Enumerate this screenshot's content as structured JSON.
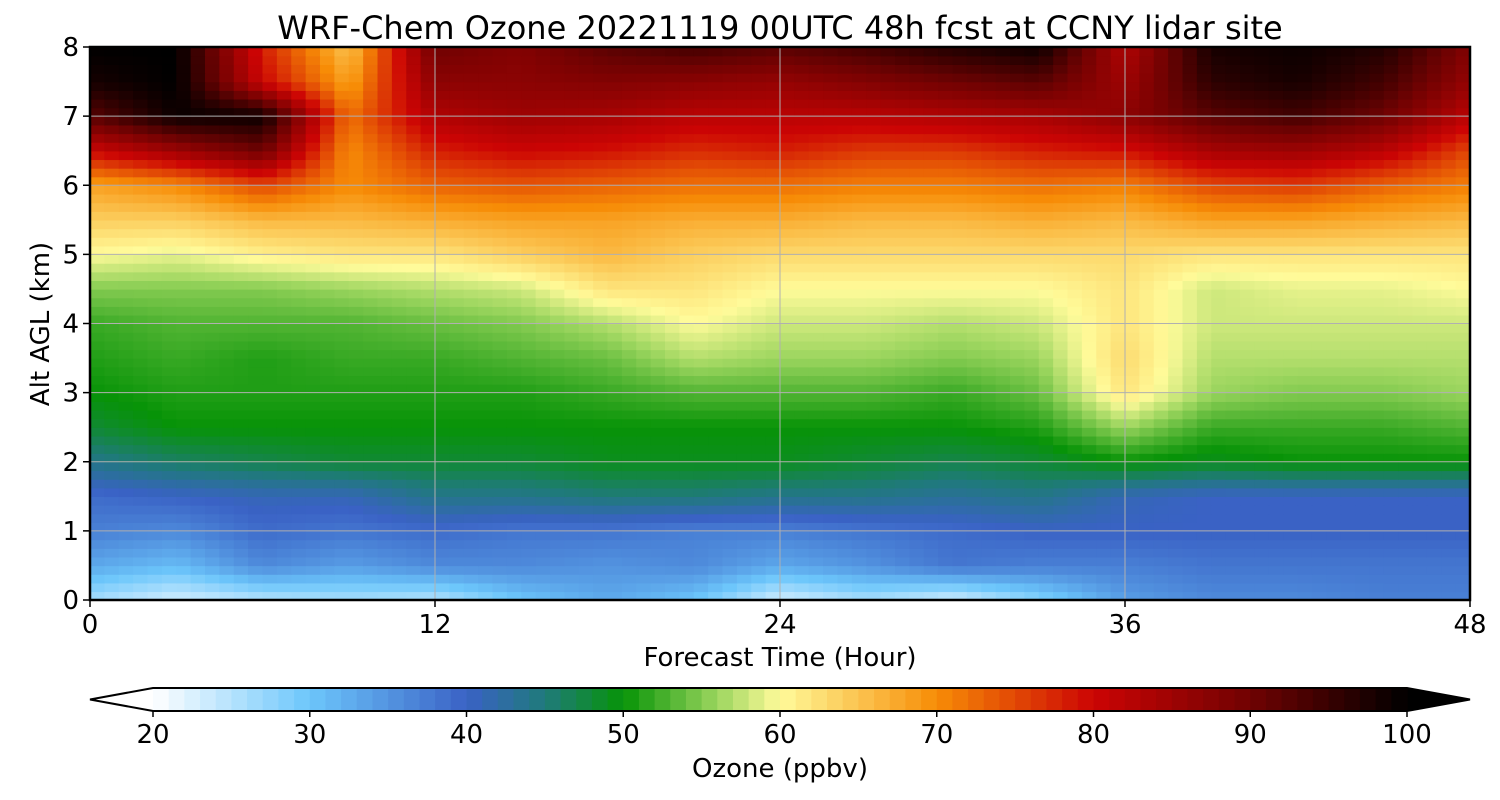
{
  "chart_data": {
    "type": "heatmap",
    "title": "WRF-Chem Ozone  20221119 00UTC 48h fcst at CCNY lidar site",
    "xlabel": "Forecast Time (Hour)",
    "ylabel": "Alt AGL (km)",
    "xlim": [
      0,
      48
    ],
    "ylim": [
      0,
      8
    ],
    "xticks": [
      0,
      12,
      24,
      36,
      48
    ],
    "yticks": [
      0,
      1,
      2,
      3,
      4,
      5,
      6,
      7,
      8
    ],
    "grid": true,
    "x": [
      0,
      3,
      6,
      9,
      12,
      15,
      18,
      21,
      24,
      27,
      30,
      33,
      36,
      39,
      42,
      45,
      48
    ],
    "y": [
      0,
      0.5,
      1,
      1.5,
      2,
      2.5,
      3,
      3.5,
      4,
      4.5,
      5,
      5.5,
      6,
      6.5,
      7,
      7.5,
      8
    ],
    "z_units": "ppbv",
    "z": [
      [
        26,
        23,
        25,
        26,
        25,
        30,
        33,
        30,
        23,
        26,
        23,
        28,
        34,
        36,
        36,
        37,
        37
      ],
      [
        33,
        31,
        36,
        34,
        36,
        36,
        35,
        36,
        33,
        35,
        38,
        37,
        37,
        38,
        38,
        38,
        38
      ],
      [
        37,
        36,
        39,
        38,
        39,
        38,
        38,
        37,
        37,
        38,
        39,
        40,
        40,
        40,
        40,
        40,
        40
      ],
      [
        39,
        40,
        41,
        41,
        44,
        44,
        45,
        45,
        44,
        44,
        43,
        44,
        41,
        40,
        40,
        40,
        40
      ],
      [
        44,
        46,
        47,
        48,
        48,
        48,
        49,
        49,
        49,
        48,
        47,
        48,
        50,
        49,
        50,
        50,
        50
      ],
      [
        48,
        50,
        50,
        50,
        50,
        50,
        50,
        50,
        50,
        50,
        50,
        51,
        56,
        52,
        52,
        52,
        53
      ],
      [
        50,
        51,
        51,
        51,
        51,
        51,
        52,
        53,
        53,
        53,
        52,
        54,
        62,
        56,
        55,
        55,
        56
      ],
      [
        51,
        52,
        51,
        52,
        52,
        53,
        54,
        57,
        56,
        56,
        55,
        56,
        63,
        57,
        57,
        57,
        57
      ],
      [
        52,
        53,
        53,
        53,
        54,
        55,
        57,
        60,
        58,
        58,
        57,
        58,
        62,
        58,
        58,
        58,
        58
      ],
      [
        55,
        55,
        55,
        56,
        57,
        58,
        62,
        62,
        60,
        60,
        60,
        60,
        62,
        58,
        59,
        59,
        60
      ],
      [
        60,
        59,
        61,
        62,
        62,
        64,
        66,
        64,
        63,
        63,
        63,
        63,
        63,
        62,
        62,
        62,
        62
      ],
      [
        64,
        64,
        66,
        66,
        67,
        68,
        68,
        67,
        67,
        66,
        66,
        67,
        66,
        68,
        68,
        67,
        66
      ],
      [
        68,
        70,
        75,
        70,
        73,
        74,
        73,
        72,
        72,
        71,
        71,
        72,
        71,
        75,
        76,
        73,
        71
      ],
      [
        80,
        85,
        90,
        70,
        78,
        80,
        79,
        77,
        78,
        76,
        76,
        78,
        79,
        84,
        85,
        82,
        75
      ],
      [
        92,
        99,
        99,
        72,
        83,
        85,
        84,
        82,
        82,
        82,
        83,
        84,
        87,
        92,
        94,
        90,
        82
      ],
      [
        98,
        100,
        80,
        68,
        87,
        87,
        88,
        87,
        86,
        88,
        90,
        92,
        85,
        96,
        98,
        94,
        86
      ],
      [
        100,
        100,
        78,
        65,
        90,
        88,
        92,
        94,
        92,
        94,
        97,
        99,
        83,
        98,
        99,
        97,
        88
      ]
    ],
    "colorbar": {
      "label": "Ozone  (ppbv)",
      "min": 20,
      "max": 100,
      "ticks": [
        20,
        30,
        40,
        50,
        60,
        70,
        80,
        90,
        100
      ],
      "extend": "both",
      "colors": [
        {
          "v": 20,
          "c": "#ffffff"
        },
        {
          "v": 30,
          "c": "#6cc6fb"
        },
        {
          "v": 40,
          "c": "#3a62c5"
        },
        {
          "v": 45,
          "c": "#1f7a7a"
        },
        {
          "v": 50,
          "c": "#079307"
        },
        {
          "v": 56,
          "c": "#9bd55e"
        },
        {
          "v": 60,
          "c": "#fffb9a"
        },
        {
          "v": 70,
          "c": "#f78c06"
        },
        {
          "v": 80,
          "c": "#cc0404"
        },
        {
          "v": 90,
          "c": "#700202"
        },
        {
          "v": 100,
          "c": "#000000"
        }
      ]
    }
  }
}
